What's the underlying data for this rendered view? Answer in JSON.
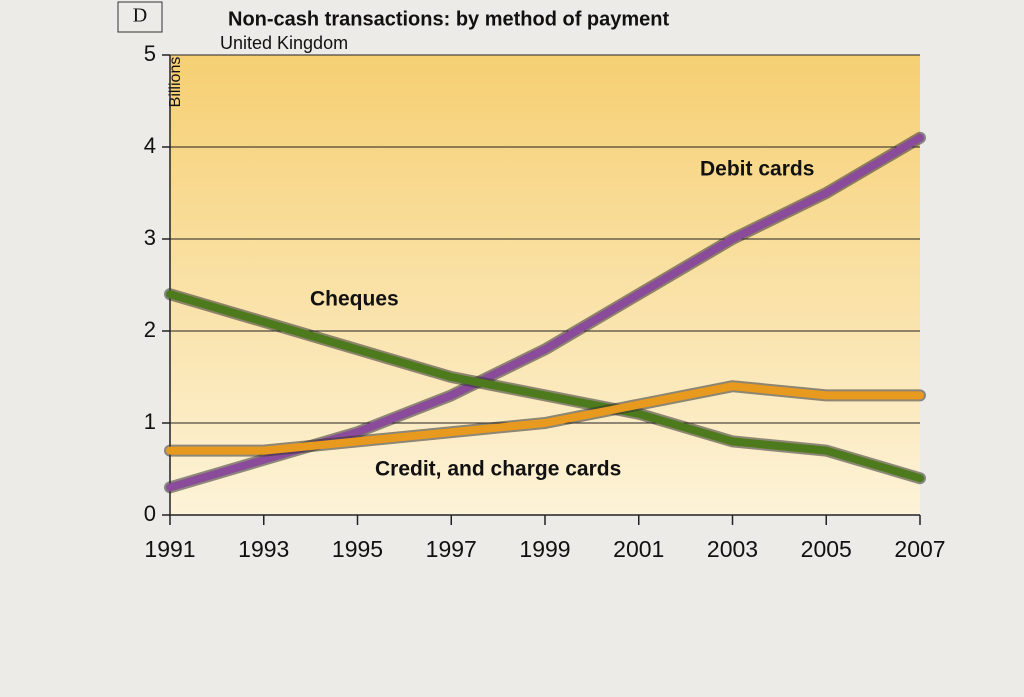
{
  "chart_data": {
    "type": "line",
    "panel_label": "D",
    "title": "Non-cash transactions: by method of payment",
    "subtitle": "United Kingdom",
    "y_label": "Billions",
    "x": [
      1991,
      1993,
      1995,
      1997,
      1999,
      2001,
      2003,
      2005,
      2007
    ],
    "series": [
      {
        "name": "Debit cards",
        "color": "#8a4c9a",
        "values": [
          0.3,
          0.6,
          0.9,
          1.3,
          1.8,
          2.4,
          3.0,
          3.5,
          4.1
        ]
      },
      {
        "name": "Cheques",
        "color": "#4d7a1c",
        "values": [
          2.4,
          2.1,
          1.8,
          1.5,
          1.3,
          1.1,
          0.8,
          0.7,
          0.4
        ]
      },
      {
        "name": "Credit, and charge cards",
        "color": "#e89a1e",
        "values": [
          0.7,
          0.7,
          0.8,
          0.9,
          1.0,
          1.2,
          1.4,
          1.3,
          1.3
        ]
      }
    ],
    "xlim": [
      1991,
      2007
    ],
    "xticks": [
      1991,
      1993,
      1995,
      1997,
      1999,
      2001,
      2003,
      2005,
      2007
    ],
    "ylim": [
      0,
      5
    ],
    "yticks": [
      0,
      1,
      2,
      3,
      4,
      5
    ],
    "grid": true
  }
}
